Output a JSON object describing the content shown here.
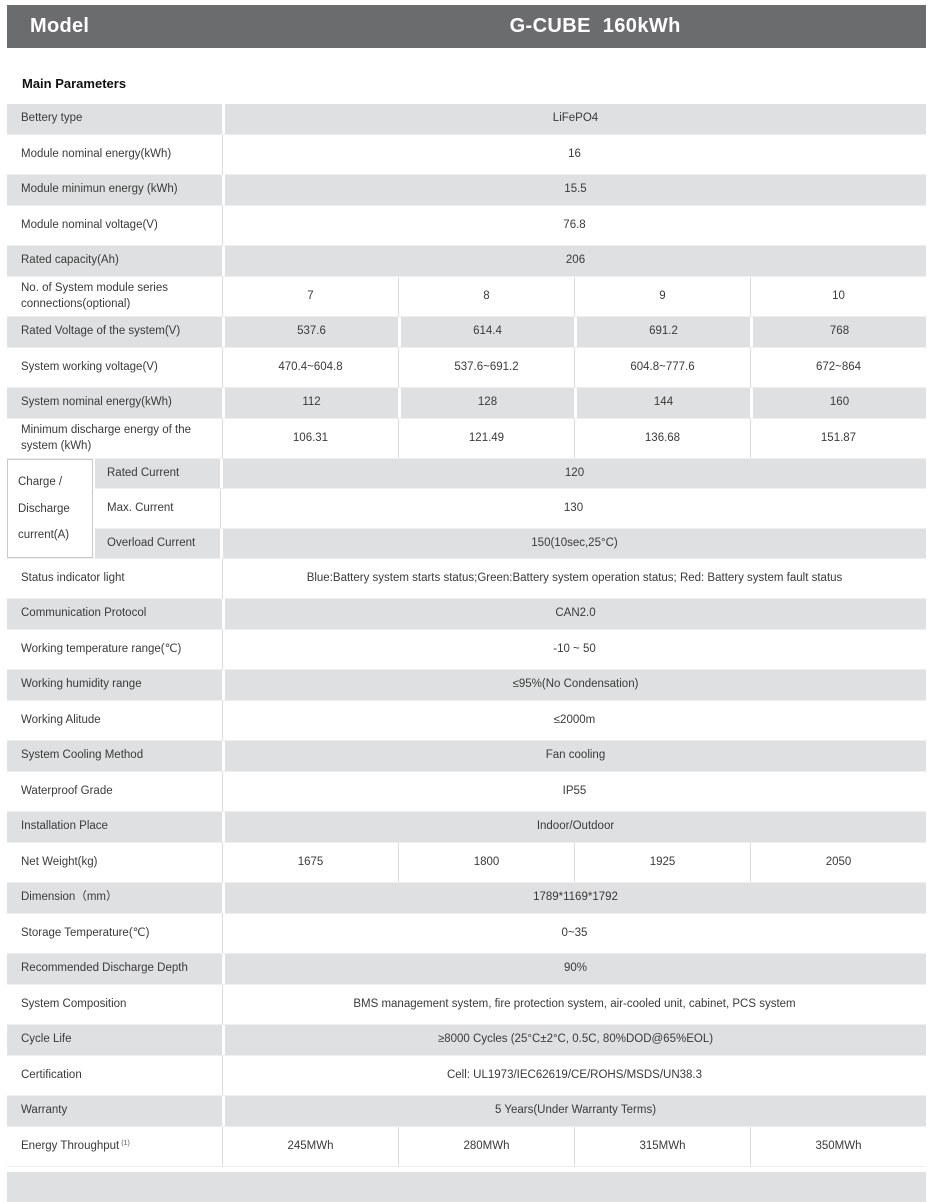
{
  "header": {
    "model_label": "Model",
    "product_name": "G-CUBE  160kWh"
  },
  "section_title": "Main Parameters",
  "colors": {
    "header_bar": "#6a6c6e",
    "row_shade": "#dfe0e1",
    "text": "#3a3a3a"
  },
  "table": {
    "rows": [
      {
        "label": "Bettery type",
        "values": [
          "LiFePO4"
        ],
        "shade": "gray"
      },
      {
        "label": "Module nominal energy(kWh)",
        "values": [
          "16"
        ],
        "shade": "white"
      },
      {
        "label": "Module minimun energy (kWh)",
        "values": [
          "15.5"
        ],
        "shade": "gray"
      },
      {
        "label": "Module nominal voltage(V)",
        "values": [
          "76.8"
        ],
        "shade": "white"
      },
      {
        "label": "Rated capacity(Ah)",
        "values": [
          "206"
        ],
        "shade": "gray"
      },
      {
        "label": "No. of System module series connections(optional)",
        "values": [
          "7",
          "8",
          "9",
          "10"
        ],
        "shade": "white"
      },
      {
        "label": "Rated Voltage of the system(V)",
        "values": [
          "537.6",
          "614.4",
          "691.2",
          "768"
        ],
        "shade": "gray"
      },
      {
        "label": "System working voltage(V)",
        "values": [
          "470.4~604.8",
          "537.6~691.2",
          "604.8~777.6",
          "672~864"
        ],
        "shade": "white"
      },
      {
        "label": "System nominal energy(kWh)",
        "values": [
          "112",
          "128",
          "144",
          "160"
        ],
        "shade": "gray"
      },
      {
        "label": "Minimum discharge energy of the system (kWh)",
        "values": [
          "106.31",
          "121.49",
          "136.68",
          "151.87"
        ],
        "shade": "white"
      },
      {
        "group_label_lines": [
          "Charge /",
          "Discharge",
          "current(A)"
        ],
        "subrows": [
          {
            "label": "Rated Current",
            "values": [
              "120"
            ],
            "shade": "gray"
          },
          {
            "label": "Max. Current",
            "values": [
              "130"
            ],
            "shade": "white"
          },
          {
            "label": "Overload Current",
            "values": [
              "150(10sec,25°C)"
            ],
            "shade": "gray"
          }
        ]
      },
      {
        "label": "Status indicator light",
        "values": [
          "Blue:Battery system starts status;Green:Battery system operation status; Red: Battery system fault status"
        ],
        "shade": "white"
      },
      {
        "label": "Communication Protocol",
        "values": [
          "CAN2.0"
        ],
        "shade": "gray"
      },
      {
        "label": "Working temperature range(℃)",
        "values": [
          "-10 ~ 50"
        ],
        "shade": "white"
      },
      {
        "label": "Working humidity range",
        "values": [
          "≤95%(No Condensation)"
        ],
        "shade": "gray"
      },
      {
        "label": "Working Alitude",
        "values": [
          "≤2000m"
        ],
        "shade": "white"
      },
      {
        "label": "System Cooling Method",
        "values": [
          "Fan cooling"
        ],
        "shade": "gray"
      },
      {
        "label": "Waterproof Grade",
        "values": [
          "IP55"
        ],
        "shade": "white"
      },
      {
        "label": "Installation Place",
        "values": [
          "Indoor/Outdoor"
        ],
        "shade": "gray"
      },
      {
        "label": "Net Weight(kg)",
        "values": [
          "1675",
          "1800",
          "1925",
          "2050"
        ],
        "shade": "white"
      },
      {
        "label": "Dimension（mm）",
        "values": [
          "1789*1169*1792"
        ],
        "shade": "gray"
      },
      {
        "label": "Storage Temperature(℃)",
        "values": [
          "0~35"
        ],
        "shade": "white"
      },
      {
        "label": "Recommended Discharge Depth",
        "values": [
          "90%"
        ],
        "shade": "gray"
      },
      {
        "label": "System Composition",
        "values": [
          "BMS management system, fire protection system, air-cooled unit, cabinet, PCS system"
        ],
        "shade": "white"
      },
      {
        "label": "Cycle Life",
        "values": [
          "≥8000 Cycles (25°C±2°C, 0.5C, 80%DOD@65%EOL)"
        ],
        "shade": "gray"
      },
      {
        "label": "Certification",
        "values": [
          "Cell: UL1973/IEC62619/CE/ROHS/MSDS/UN38.3"
        ],
        "shade": "white"
      },
      {
        "label": "Warranty",
        "values": [
          "5 Years(Under Warranty Terms)"
        ],
        "shade": "gray"
      },
      {
        "label": "Energy Throughput",
        "label_sup": "(1)",
        "values": [
          "245MWh",
          "280MWh",
          "315MWh",
          "350MWh"
        ],
        "shade": "white"
      }
    ]
  }
}
